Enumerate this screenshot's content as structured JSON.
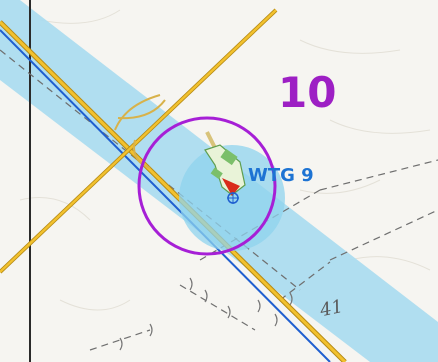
{
  "map": {
    "sheet_number": "10",
    "turbine": {
      "label": "WTG 9",
      "label_color": "#1d73d3",
      "marker_color": "#d92b1a",
      "buffer_ring_color": "#a61fd6",
      "buffer_fill_color": "#8fd3ee"
    },
    "contour_label": "41",
    "colors": {
      "corridor": "#a9dcf0",
      "road_main": "#f2c12e",
      "road_edge": "#b58a14",
      "water_line": "#1f5fd0",
      "sheet_number": "#9d1fc4",
      "background": "#f6f5f1",
      "parcel_line": "#6f6f6f",
      "vegetation": "#7bbf6a",
      "dark_boundary": "#2a2a2a"
    }
  }
}
